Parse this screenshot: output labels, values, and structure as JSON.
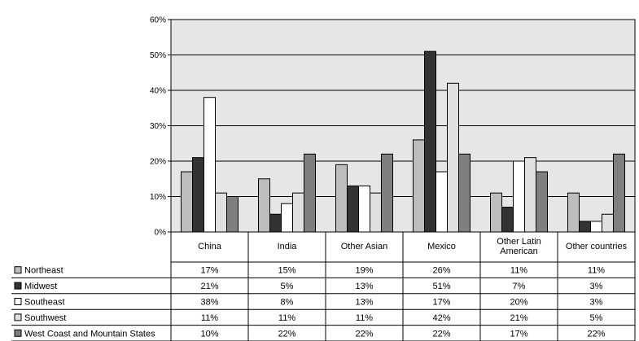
{
  "chart_data": {
    "type": "bar",
    "categories": [
      "China",
      "India",
      "Other Asian",
      "Mexico",
      "Other Latin American",
      "Other countries"
    ],
    "category_lines": [
      [
        "China"
      ],
      [
        "India"
      ],
      [
        "Other Asian"
      ],
      [
        "Mexico"
      ],
      [
        "Other Latin",
        "American"
      ],
      [
        "Other countries"
      ]
    ],
    "series": [
      {
        "name": "Northeast",
        "color": "#bdbdbd",
        "values": [
          17,
          15,
          19,
          26,
          11,
          11
        ],
        "labels": [
          "17%",
          "15%",
          "19%",
          "26%",
          "11%",
          "11%"
        ]
      },
      {
        "name": "Midwest",
        "color": "#333333",
        "values": [
          21,
          5,
          13,
          51,
          7,
          3
        ],
        "labels": [
          "21%",
          "5%",
          "13%",
          "51%",
          "7%",
          "3%"
        ]
      },
      {
        "name": "Southeast",
        "color": "#ffffff",
        "values": [
          38,
          8,
          13,
          17,
          20,
          3
        ],
        "labels": [
          "38%",
          "8%",
          "13%",
          "17%",
          "20%",
          "3%"
        ]
      },
      {
        "name": "Southwest",
        "color": "#e0e0e0",
        "values": [
          11,
          11,
          11,
          42,
          21,
          5
        ],
        "labels": [
          "11%",
          "11%",
          "11%",
          "42%",
          "21%",
          "5%"
        ]
      },
      {
        "name": "West Coast and Mountain States",
        "color": "#7f7f7f",
        "values": [
          10,
          22,
          22,
          22,
          17,
          22
        ],
        "labels": [
          "10%",
          "22%",
          "22%",
          "22%",
          "17%",
          "22%"
        ]
      }
    ],
    "yticks": [
      "0%",
      "10%",
      "20%",
      "30%",
      "40%",
      "50%",
      "60%"
    ],
    "ylim": [
      0,
      60
    ],
    "plot_background": "#e6e6e6",
    "grid": true,
    "legend": "data-table-left"
  }
}
